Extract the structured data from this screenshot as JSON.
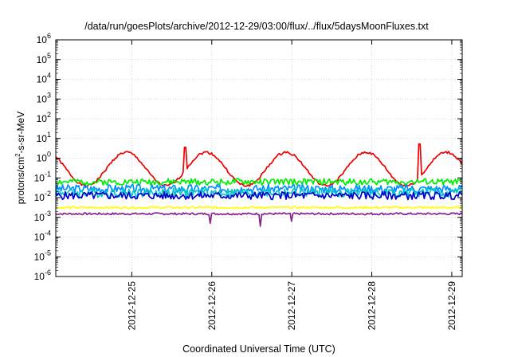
{
  "chart_data": {
    "type": "line",
    "title": "/data/run/goesPlots/archive/2012-12-29/03:00/flux/../flux/5daysMoonFluxes.txt",
    "xlabel": "Coordinated Universal Time (UTC)",
    "ylabel_main": "protons/cm",
    "ylabel_sup": "2",
    "ylabel_tail": "-s-sr-MeV",
    "y_scale": "log",
    "ylim_exp": [
      -6,
      6
    ],
    "y_ticks": [
      {
        "exp": -6,
        "base": "10",
        "sup": "-6"
      },
      {
        "exp": -5,
        "base": "10",
        "sup": "-5"
      },
      {
        "exp": -4,
        "base": "10",
        "sup": "-4"
      },
      {
        "exp": -3,
        "base": "10",
        "sup": "-3"
      },
      {
        "exp": -2,
        "base": "10",
        "sup": "-2"
      },
      {
        "exp": -1,
        "base": "10",
        "sup": "-1"
      },
      {
        "exp": 0,
        "base": "10",
        "sup": "0"
      },
      {
        "exp": 1,
        "base": "10",
        "sup": "1"
      },
      {
        "exp": 2,
        "base": "10",
        "sup": "2"
      },
      {
        "exp": 3,
        "base": "10",
        "sup": "3"
      },
      {
        "exp": 4,
        "base": "10",
        "sup": "4"
      },
      {
        "exp": 5,
        "base": "10",
        "sup": "5"
      },
      {
        "exp": 6,
        "base": "10",
        "sup": "6"
      }
    ],
    "xlim_days": [
      -0.95,
      4.13
    ],
    "x_ticks": [
      {
        "day": 0,
        "label": "2012-12-25"
      },
      {
        "day": 1,
        "label": "2012-12-26"
      },
      {
        "day": 2,
        "label": "2012-12-27"
      },
      {
        "day": 3,
        "label": "2012-12-28"
      },
      {
        "day": 4,
        "label": "2012-12-29"
      }
    ],
    "grid": true,
    "legend": "none",
    "series": [
      {
        "color": "#ee0000",
        "shape": "periodic",
        "base": -0.55,
        "amp": 0.85,
        "period": 1.0,
        "phase": -0.32,
        "noise": 0.06,
        "seed": 1,
        "bumps": [
          {
            "day": 0.67,
            "exp": 0.55
          },
          {
            "day": 3.6,
            "exp": 0.72
          }
        ]
      },
      {
        "color": "#00ee00",
        "shape": "noisy",
        "base": -1.2,
        "noise": 0.16,
        "seed": 2
      },
      {
        "color": "#0090ff",
        "shape": "noisy",
        "base": -1.55,
        "noise": 0.22,
        "seed": 3
      },
      {
        "color": "#00c8c8",
        "shape": "noisy",
        "base": -1.75,
        "noise": 0.24,
        "seed": 4
      },
      {
        "color": "#0000cc",
        "shape": "noisy",
        "base": -1.9,
        "noise": 0.2,
        "seed": 5
      },
      {
        "color": "#ffff00",
        "shape": "noisy",
        "base": -2.5,
        "noise": 0.05,
        "seed": 6
      },
      {
        "color": "#882288",
        "shape": "noisy",
        "base": -2.82,
        "noise": 0.05,
        "seed": 7,
        "dips": [
          {
            "day": 0.98,
            "exp": -3.3
          },
          {
            "day": 1.6,
            "exp": -3.45
          },
          {
            "day": 2.0,
            "exp": -3.2
          }
        ]
      }
    ]
  }
}
